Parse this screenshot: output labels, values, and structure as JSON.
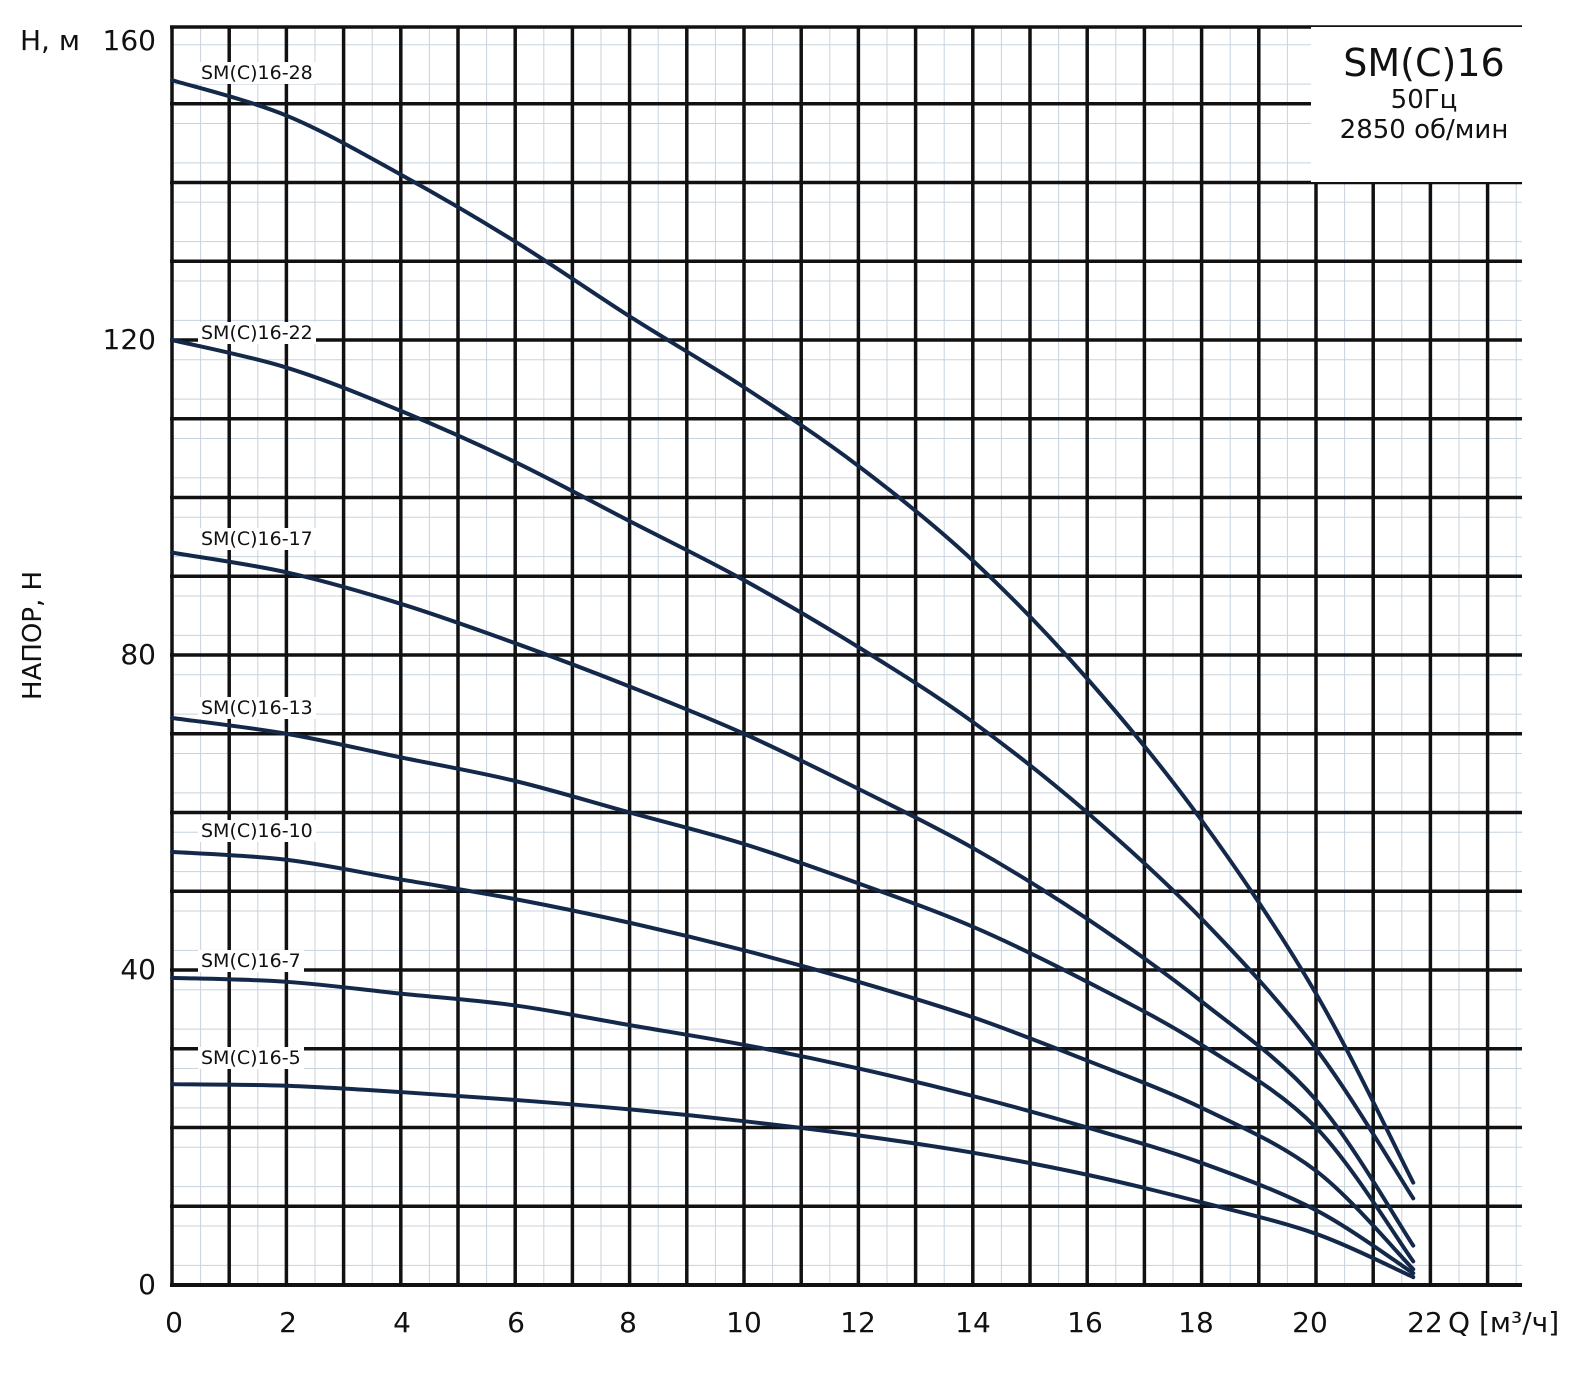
{
  "chart_data": {
    "type": "line",
    "title": "SM(C)16",
    "subtitle": [
      "50Гц",
      "2850 об/мин"
    ],
    "xlabel": "Q [м³/ч]",
    "ylabel": "НАПОР, Н",
    "yunit_label": "H, м",
    "xlim": [
      0,
      23.5
    ],
    "ylim": [
      0,
      160
    ],
    "x_ticks": [
      0,
      2,
      4,
      6,
      8,
      10,
      12,
      14,
      16,
      18,
      20,
      22
    ],
    "y_ticks": [
      0,
      40,
      80,
      120,
      160
    ],
    "grid": true,
    "x": [
      0,
      2,
      4,
      6,
      8,
      10,
      12,
      14,
      16,
      18,
      20,
      21.7
    ],
    "series": [
      {
        "name": "SM(C)16-28",
        "values": [
          153,
          148.5,
          141,
          132.5,
          123,
          114,
          104,
          92,
          77,
          59,
          37,
          13
        ]
      },
      {
        "name": "SM(C)16-22",
        "values": [
          120,
          116.5,
          111,
          104.5,
          97,
          89.5,
          81,
          71.5,
          60,
          46.5,
          30,
          11
        ]
      },
      {
        "name": "SM(C)16-17",
        "values": [
          93,
          90.5,
          86.5,
          81.5,
          76,
          70,
          63,
          55.5,
          46.5,
          36,
          23.5,
          5
        ]
      },
      {
        "name": "SM(C)16-13",
        "values": [
          72,
          70,
          67,
          64,
          60,
          56,
          51,
          45.5,
          38.5,
          30.5,
          20,
          3
        ]
      },
      {
        "name": "SM(C)16-10",
        "values": [
          55,
          54,
          51.5,
          49,
          46,
          42.5,
          38.5,
          34,
          28.5,
          22.5,
          14.5,
          2
        ]
      },
      {
        "name": "SM(C)16-7",
        "values": [
          39,
          38.5,
          37,
          35.5,
          33,
          30.5,
          27.5,
          24,
          20,
          15.5,
          9.5,
          1.5
        ]
      },
      {
        "name": "SM(C)16-5",
        "values": [
          25.5,
          25.3,
          24.5,
          23.5,
          22.3,
          20.8,
          19,
          16.8,
          14,
          10.5,
          6.5,
          1
        ]
      }
    ],
    "colors": {
      "curve": "#14294a",
      "major_grid": "#111111",
      "minor_grid": "#c8d3de"
    }
  }
}
